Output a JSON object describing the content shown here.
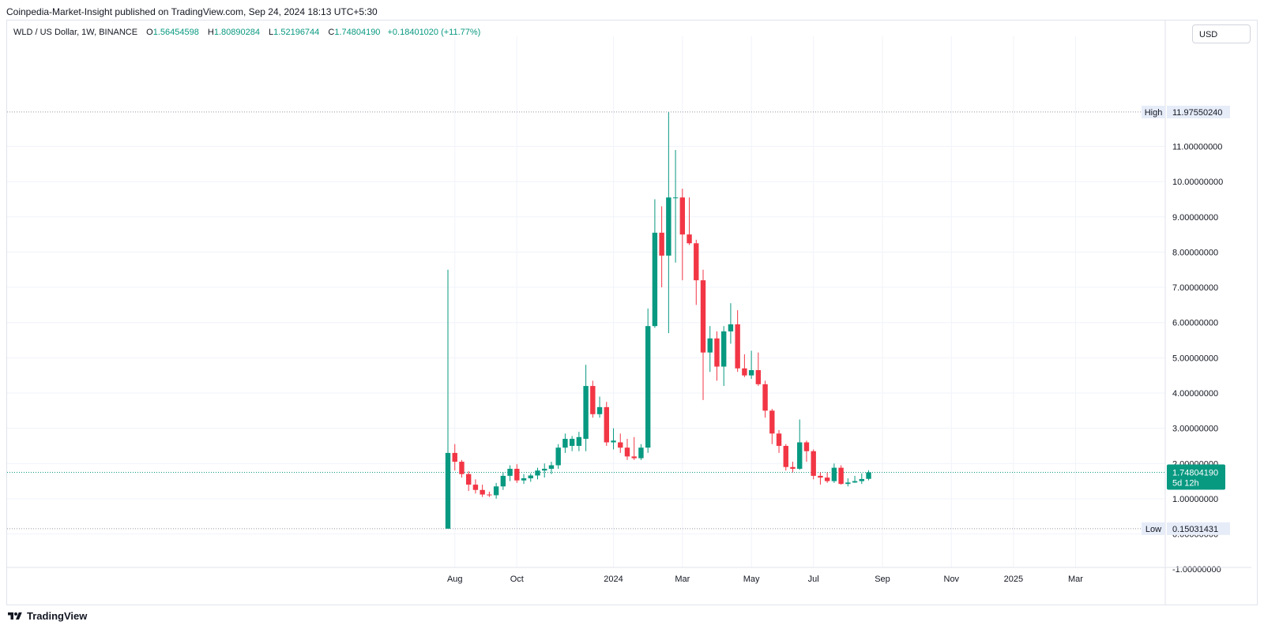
{
  "header": {
    "publisher": "Coinpedia-Market-Insight published on TradingView.com, Sep 24, 2024 18:13 UTC+5:30"
  },
  "legend": {
    "symbol": "WLD / US Dollar, 1W, BINANCE",
    "o_label": "O",
    "o_value": "1.56454598",
    "h_label": "H",
    "h_value": "1.80890284",
    "l_label": "L",
    "l_value": "1.52196744",
    "c_label": "C",
    "c_value": "1.74804190",
    "change": "+0.18401020 (+11.77%)"
  },
  "currency_button": "USD",
  "brand": {
    "name": "TradingView"
  },
  "colors": {
    "up": "#089981",
    "down": "#f23645",
    "grid": "#f0f3fa",
    "axis_text": "#131722"
  },
  "chart_data": {
    "type": "candlestick",
    "ylim": [
      -0.95,
      13.9
    ],
    "y_ticks": [
      {
        "v": 11,
        "label": "11.00000000"
      },
      {
        "v": 10,
        "label": "10.00000000"
      },
      {
        "v": 9,
        "label": "9.00000000"
      },
      {
        "v": 8,
        "label": "8.00000000"
      },
      {
        "v": 7,
        "label": "7.00000000"
      },
      {
        "v": 6,
        "label": "6.00000000"
      },
      {
        "v": 5,
        "label": "5.00000000"
      },
      {
        "v": 4,
        "label": "4.00000000"
      },
      {
        "v": 3,
        "label": "3.00000000"
      },
      {
        "v": 2,
        "label": "2.00000000"
      },
      {
        "v": 1,
        "label": "1.00000000"
      },
      {
        "v": 0,
        "label": "0.00000000"
      },
      {
        "v": -1,
        "label": "-1.00000000"
      }
    ],
    "x_ticks": [
      {
        "week": 1,
        "label": "Aug"
      },
      {
        "week": 10,
        "label": "Oct"
      },
      {
        "week": 24,
        "label": "2024"
      },
      {
        "week": 34,
        "label": "Mar"
      },
      {
        "week": 44,
        "label": "May"
      },
      {
        "week": 53,
        "label": "Jul"
      },
      {
        "week": 63,
        "label": "Sep"
      },
      {
        "week": 73,
        "label": "Nov"
      },
      {
        "week": 82,
        "label": "2025"
      },
      {
        "week": 91,
        "label": "Mar"
      }
    ],
    "high_marker": {
      "label": "High",
      "value": 11.9755024,
      "text": "11.97550240"
    },
    "low_marker": {
      "label": "Low",
      "value": 0.15031431,
      "text": "0.15031431"
    },
    "last_price": {
      "value": 1.7480419,
      "text": "1.74804190",
      "countdown": "5d 12h"
    },
    "candles": [
      {
        "o": 0.15,
        "h": 7.5,
        "l": 0.15,
        "c": 2.3
      },
      {
        "o": 2.3,
        "h": 2.55,
        "l": 1.8,
        "c": 2.05
      },
      {
        "o": 2.05,
        "h": 2.1,
        "l": 1.6,
        "c": 1.7
      },
      {
        "o": 1.7,
        "h": 1.78,
        "l": 1.22,
        "c": 1.4
      },
      {
        "o": 1.4,
        "h": 1.55,
        "l": 1.15,
        "c": 1.25
      },
      {
        "o": 1.25,
        "h": 1.4,
        "l": 1.05,
        "c": 1.12
      },
      {
        "o": 1.12,
        "h": 1.2,
        "l": 1.05,
        "c": 1.1
      },
      {
        "o": 1.1,
        "h": 1.45,
        "l": 1.0,
        "c": 1.35
      },
      {
        "o": 1.35,
        "h": 1.75,
        "l": 1.25,
        "c": 1.65
      },
      {
        "o": 1.65,
        "h": 1.95,
        "l": 1.5,
        "c": 1.85
      },
      {
        "o": 1.85,
        "h": 1.98,
        "l": 1.45,
        "c": 1.52
      },
      {
        "o": 1.52,
        "h": 1.7,
        "l": 1.42,
        "c": 1.58
      },
      {
        "o": 1.58,
        "h": 1.72,
        "l": 1.48,
        "c": 1.66
      },
      {
        "o": 1.66,
        "h": 1.88,
        "l": 1.55,
        "c": 1.8
      },
      {
        "o": 1.8,
        "h": 2.0,
        "l": 1.6,
        "c": 1.85
      },
      {
        "o": 1.85,
        "h": 2.05,
        "l": 1.7,
        "c": 1.95
      },
      {
        "o": 1.95,
        "h": 2.55,
        "l": 1.85,
        "c": 2.45
      },
      {
        "o": 2.45,
        "h": 2.85,
        "l": 2.3,
        "c": 2.7
      },
      {
        "o": 2.5,
        "h": 2.78,
        "l": 2.35,
        "c": 2.7
      },
      {
        "o": 2.5,
        "h": 2.9,
        "l": 2.35,
        "c": 2.75
      },
      {
        "o": 2.7,
        "h": 4.8,
        "l": 2.35,
        "c": 4.2
      },
      {
        "o": 4.2,
        "h": 4.35,
        "l": 3.3,
        "c": 3.4
      },
      {
        "o": 3.4,
        "h": 3.9,
        "l": 3.3,
        "c": 3.6
      },
      {
        "o": 3.6,
        "h": 3.75,
        "l": 2.5,
        "c": 2.6
      },
      {
        "o": 2.6,
        "h": 3.0,
        "l": 2.4,
        "c": 2.65
      },
      {
        "o": 2.6,
        "h": 2.85,
        "l": 2.3,
        "c": 2.45
      },
      {
        "o": 2.45,
        "h": 2.7,
        "l": 2.1,
        "c": 2.2
      },
      {
        "o": 2.2,
        "h": 2.75,
        "l": 2.1,
        "c": 2.15
      },
      {
        "o": 2.15,
        "h": 2.55,
        "l": 2.1,
        "c": 2.45
      },
      {
        "o": 2.45,
        "h": 6.4,
        "l": 2.3,
        "c": 5.9
      },
      {
        "o": 5.9,
        "h": 9.5,
        "l": 5.85,
        "c": 8.55
      },
      {
        "o": 8.55,
        "h": 9.3,
        "l": 7.0,
        "c": 7.9
      },
      {
        "o": 7.9,
        "h": 11.97,
        "l": 5.7,
        "c": 9.55
      },
      {
        "o": 9.55,
        "h": 10.9,
        "l": 7.7,
        "c": 9.55
      },
      {
        "o": 9.55,
        "h": 9.8,
        "l": 7.2,
        "c": 8.5
      },
      {
        "o": 8.5,
        "h": 9.55,
        "l": 8.2,
        "c": 8.25
      },
      {
        "o": 8.25,
        "h": 8.35,
        "l": 6.5,
        "c": 7.2
      },
      {
        "o": 7.2,
        "h": 7.5,
        "l": 3.8,
        "c": 5.15
      },
      {
        "o": 5.15,
        "h": 5.9,
        "l": 4.6,
        "c": 5.55
      },
      {
        "o": 5.55,
        "h": 5.75,
        "l": 4.35,
        "c": 4.75
      },
      {
        "o": 4.75,
        "h": 5.9,
        "l": 4.2,
        "c": 5.75
      },
      {
        "o": 5.75,
        "h": 6.55,
        "l": 5.4,
        "c": 5.95
      },
      {
        "o": 5.95,
        "h": 6.35,
        "l": 4.6,
        "c": 4.7
      },
      {
        "o": 4.7,
        "h": 5.1,
        "l": 4.45,
        "c": 4.5
      },
      {
        "o": 4.5,
        "h": 5.2,
        "l": 4.4,
        "c": 4.65
      },
      {
        "o": 4.65,
        "h": 5.15,
        "l": 4.2,
        "c": 4.25
      },
      {
        "o": 4.25,
        "h": 4.35,
        "l": 3.3,
        "c": 3.5
      },
      {
        "o": 3.5,
        "h": 3.55,
        "l": 2.55,
        "c": 2.85
      },
      {
        "o": 2.85,
        "h": 2.95,
        "l": 2.3,
        "c": 2.5
      },
      {
        "o": 2.5,
        "h": 2.55,
        "l": 1.8,
        "c": 1.9
      },
      {
        "o": 1.9,
        "h": 2.05,
        "l": 1.75,
        "c": 1.85
      },
      {
        "o": 1.85,
        "h": 3.25,
        "l": 1.82,
        "c": 2.6
      },
      {
        "o": 2.6,
        "h": 2.65,
        "l": 2.05,
        "c": 2.35
      },
      {
        "o": 2.35,
        "h": 2.4,
        "l": 1.55,
        "c": 1.65
      },
      {
        "o": 1.65,
        "h": 1.75,
        "l": 1.4,
        "c": 1.6
      },
      {
        "o": 1.6,
        "h": 1.75,
        "l": 1.45,
        "c": 1.5
      },
      {
        "o": 1.5,
        "h": 2.0,
        "l": 1.45,
        "c": 1.88
      },
      {
        "o": 1.88,
        "h": 1.95,
        "l": 1.4,
        "c": 1.42
      },
      {
        "o": 1.42,
        "h": 1.58,
        "l": 1.35,
        "c": 1.46
      },
      {
        "o": 1.46,
        "h": 1.65,
        "l": 1.45,
        "c": 1.5
      },
      {
        "o": 1.5,
        "h": 1.72,
        "l": 1.42,
        "c": 1.56
      },
      {
        "o": 1.5645,
        "h": 1.8089,
        "l": 1.522,
        "c": 1.748
      }
    ]
  }
}
